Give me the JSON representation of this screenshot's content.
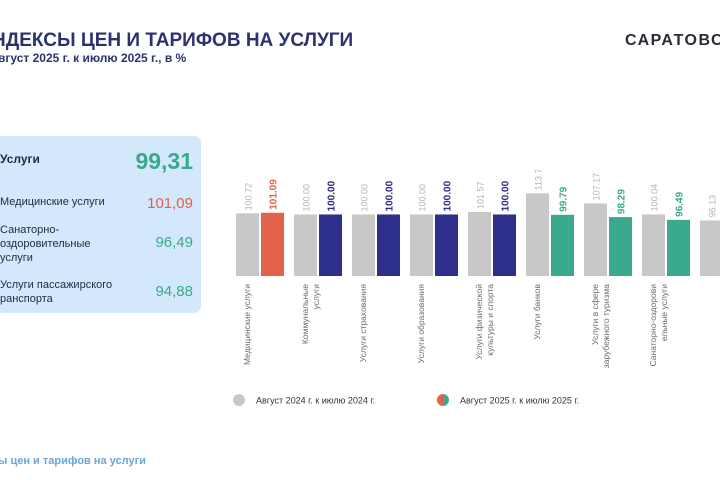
{
  "header": {
    "title": "НДЕКСЫ ЦЕН И ТАРИФОВ НА УСЛУГИ",
    "subtitle": "вгуст 2025 г. к июлю 2025 г., в %",
    "brand": "САРАТОВС"
  },
  "panel": {
    "rows": [
      {
        "label": "Услуги",
        "value": "99,31",
        "color": "#3ba98e"
      },
      {
        "label": "Медицинские услуги",
        "value": "101,09",
        "color": "#e2624a"
      },
      {
        "label": "Санаторно-\nоздоровительные\nуслуги",
        "value": "96,49",
        "color": "#3ba98e"
      },
      {
        "label": "Услуги пассажирского\nранспорта",
        "value": "94,88",
        "color": "#3ba98e"
      }
    ]
  },
  "chart_data": {
    "type": "bar",
    "categories": [
      "Медицинские услуги",
      "Коммунальные услуги",
      "Услуги страхования",
      "Услуги образования",
      "Услуги физической культуры и спорта",
      "Услуги банков",
      "Услуги в сфере зарубежного туризма",
      "Санаторно-оздоровительные услуги",
      ""
    ],
    "series": [
      {
        "name": "Август  2024 г. к  июлю  2024 г.",
        "values": [
          100.72,
          100.0,
          100.0,
          100.0,
          101.57,
          113.73,
          107.17,
          100.04,
          96.13
        ],
        "labels": [
          "100.72",
          "100.00",
          "100.00",
          "100.00",
          "101.57",
          "113.73",
          "107.17",
          "100.04",
          "96.13"
        ],
        "color": "#c8c8c8"
      },
      {
        "name": "Август  2025 г. к июлю  2025 г.",
        "values": [
          101.09,
          100.0,
          100.0,
          100.0,
          100.0,
          99.79,
          98.29,
          96.49,
          null
        ],
        "labels": [
          "101.09",
          "100.00",
          "100.00",
          "100.00",
          "100.00",
          "99.79",
          "98.29",
          "96.49",
          ""
        ],
        "colors": [
          "#e2624a",
          "#2e2e8c",
          "#2e2e8c",
          "#2e2e8c",
          "#2e2e8c",
          "#3ba98e",
          "#3ba98e",
          "#3ba98e",
          "#3ba98e"
        ]
      }
    ],
    "legend_position": "bottom",
    "grid": false
  },
  "legend": {
    "grey_color": "#c8c8c8",
    "mixed_colors": [
      "#e2624a",
      "#3ba98e"
    ]
  },
  "footer": {
    "text": "ы цен и тарифов на услуги"
  }
}
